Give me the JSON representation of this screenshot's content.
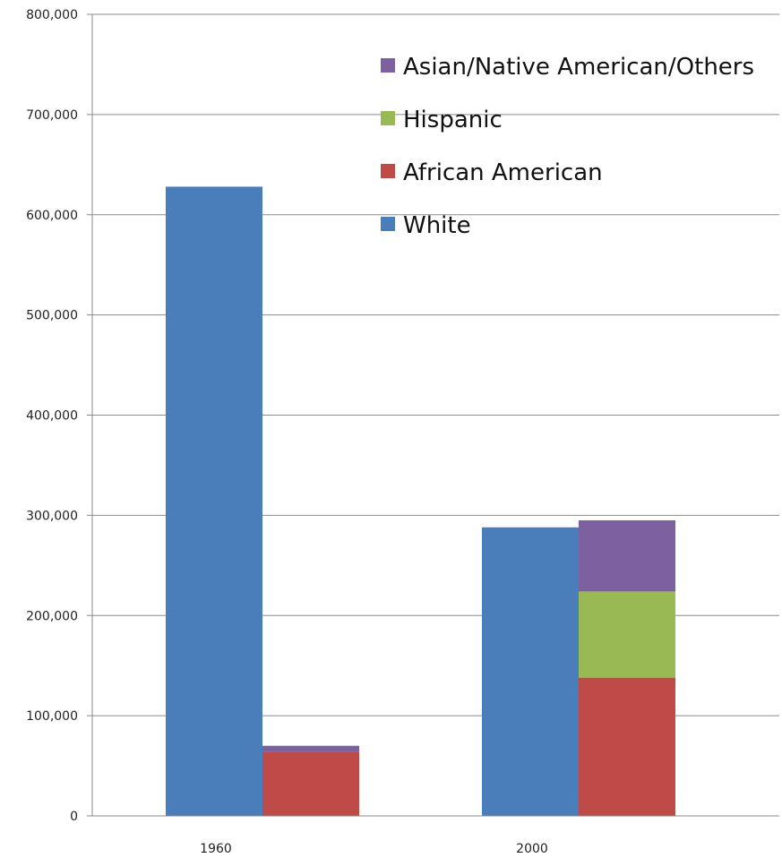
{
  "chart_data": {
    "type": "bar",
    "categories": [
      "1960",
      "2000"
    ],
    "ylim": [
      0,
      800000
    ],
    "yticks": [
      "0",
      "100,000",
      "200,000",
      "300,000",
      "400,000",
      "500,000",
      "600,000",
      "700,000",
      "800,000"
    ],
    "ytick_values": [
      0,
      100000,
      200000,
      300000,
      400000,
      500000,
      600000,
      700000,
      800000
    ],
    "grid": true,
    "legend_placement": "top-right",
    "stacked_group": [
      "African American",
      "Hispanic",
      "Asian/Native American/Others"
    ],
    "series": [
      {
        "name": "White",
        "color": "#4a7ebb",
        "values": [
          628000,
          288000
        ]
      },
      {
        "name": "African American",
        "color": "#be4b48",
        "values": [
          64000,
          138000
        ]
      },
      {
        "name": "Hispanic",
        "color": "#98b954",
        "values": [
          0,
          86000
        ]
      },
      {
        "name": "Asian/Native American/Others",
        "color": "#7d60a0",
        "values": [
          6000,
          71000
        ]
      }
    ],
    "legend": [
      {
        "label": "Asian/Native American/Others",
        "color": "#7d60a0"
      },
      {
        "label": "Hispanic",
        "color": "#98b954"
      },
      {
        "label": "African American",
        "color": "#be4b48"
      },
      {
        "label": "White",
        "color": "#4a7ebb"
      }
    ]
  }
}
